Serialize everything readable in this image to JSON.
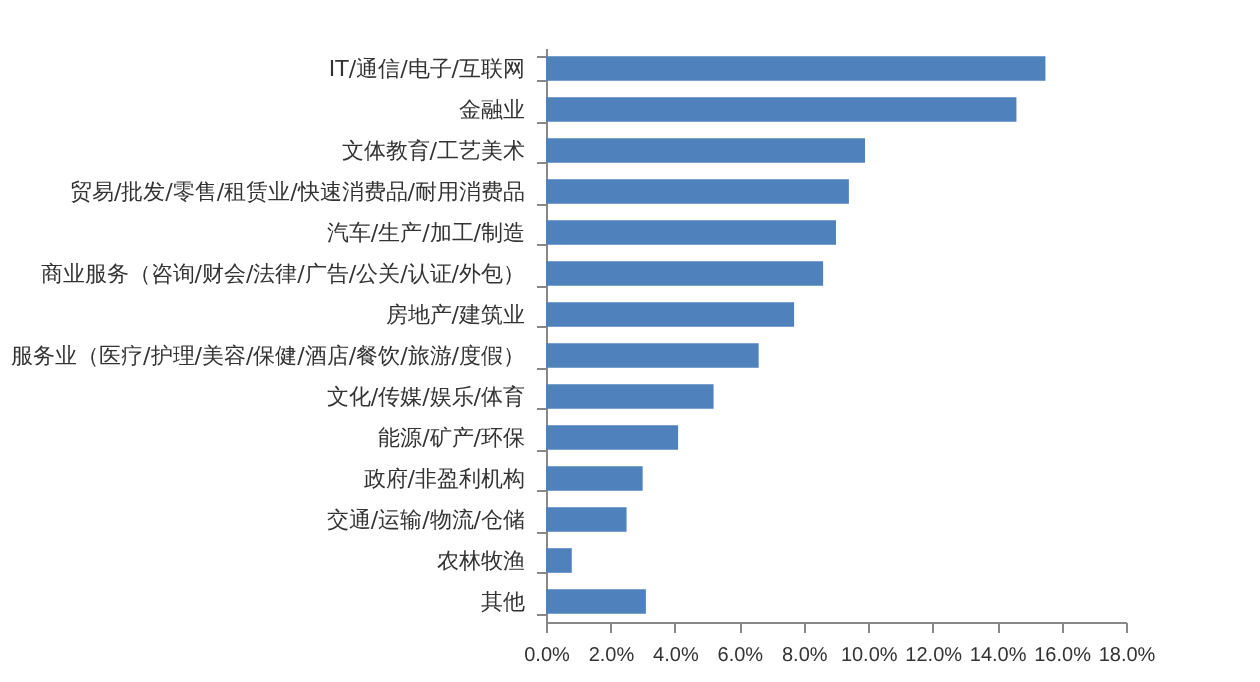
{
  "chart_data": {
    "type": "bar",
    "orientation": "horizontal",
    "categories": [
      "IT/通信/电子/互联网",
      "金融业",
      "文体教育/工艺美术",
      "贸易/批发/零售/租赁业/快速消费品/耐用消费品",
      "汽车/生产/加工/制造",
      "商业服务（咨询/财会/法律/广告/公关/认证/外包）",
      "房地产/建筑业",
      "服务业（医疗/护理/美容/保健/酒店/餐饮/旅游/度假）",
      "文化/传媒/娱乐/体育",
      "能源/矿产/环保",
      "政府/非盈利机构",
      "交通/运输/物流/仓储",
      "农林牧渔",
      "其他"
    ],
    "values": [
      15.5,
      14.6,
      9.9,
      9.4,
      9.0,
      8.6,
      7.7,
      6.6,
      5.2,
      4.1,
      3.0,
      2.5,
      0.8,
      3.1
    ],
    "color": "#4f81bd",
    "xlim": [
      0,
      18
    ],
    "xticks": [
      {
        "value": 0,
        "label": "0.0%"
      },
      {
        "value": 2,
        "label": "2.0%"
      },
      {
        "value": 4,
        "label": "4.0%"
      },
      {
        "value": 6,
        "label": "6.0%"
      },
      {
        "value": 8,
        "label": "8.0%"
      },
      {
        "value": 10,
        "label": "10.0%"
      },
      {
        "value": 12,
        "label": "12.0%"
      },
      {
        "value": 14,
        "label": "14.0%"
      },
      {
        "value": 16,
        "label": "16.0%"
      },
      {
        "value": 18,
        "label": "18.0%"
      }
    ],
    "grid": false
  }
}
